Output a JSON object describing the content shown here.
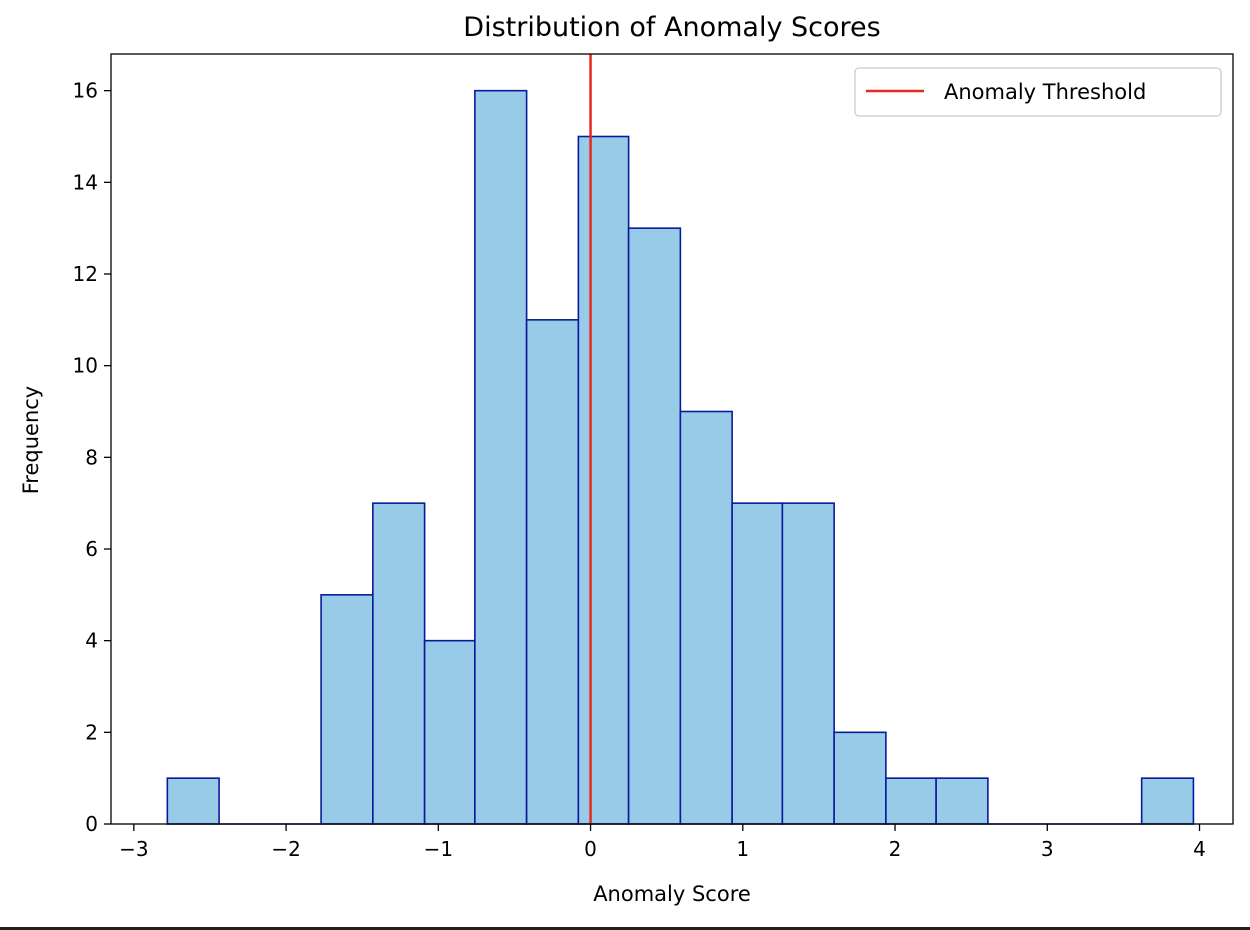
{
  "chart_data": {
    "type": "bar",
    "title": "Distribution of Anomaly Scores",
    "xlabel": "Anomaly Score",
    "ylabel": "Frequency",
    "xlim": [
      -3.15,
      4.22
    ],
    "ylim": [
      0,
      16.8
    ],
    "xticks": [
      -3,
      -2,
      -1,
      0,
      1,
      2,
      3,
      4
    ],
    "xtick_labels": [
      "−3",
      "−2",
      "−1",
      "0",
      "1",
      "2",
      "3",
      "4"
    ],
    "yticks": [
      0,
      2,
      4,
      6,
      8,
      10,
      12,
      14,
      16
    ],
    "ytick_labels": [
      "0",
      "2",
      "4",
      "6",
      "8",
      "10",
      "12",
      "14",
      "16"
    ],
    "bin_edges": [
      -2.78,
      -2.44,
      -2.1,
      -1.77,
      -1.43,
      -1.09,
      -0.76,
      -0.42,
      -0.08,
      0.25,
      0.59,
      0.93,
      1.26,
      1.6,
      1.94,
      2.27,
      2.61,
      2.95,
      3.28,
      3.62,
      3.96
    ],
    "counts": [
      1,
      0,
      0,
      5,
      7,
      4,
      16,
      11,
      15,
      13,
      9,
      7,
      7,
      2,
      1,
      1,
      0,
      0,
      0,
      1
    ],
    "threshold": 0,
    "legend": {
      "entries": [
        {
          "label": "Anomaly Threshold",
          "color": "#e8281e"
        }
      ],
      "position": "upper right"
    },
    "grid": false,
    "colors": {
      "bar_fill": "#98cbe8",
      "bar_edge": "#0a1a9c",
      "threshold_line": "#e8281e"
    }
  }
}
